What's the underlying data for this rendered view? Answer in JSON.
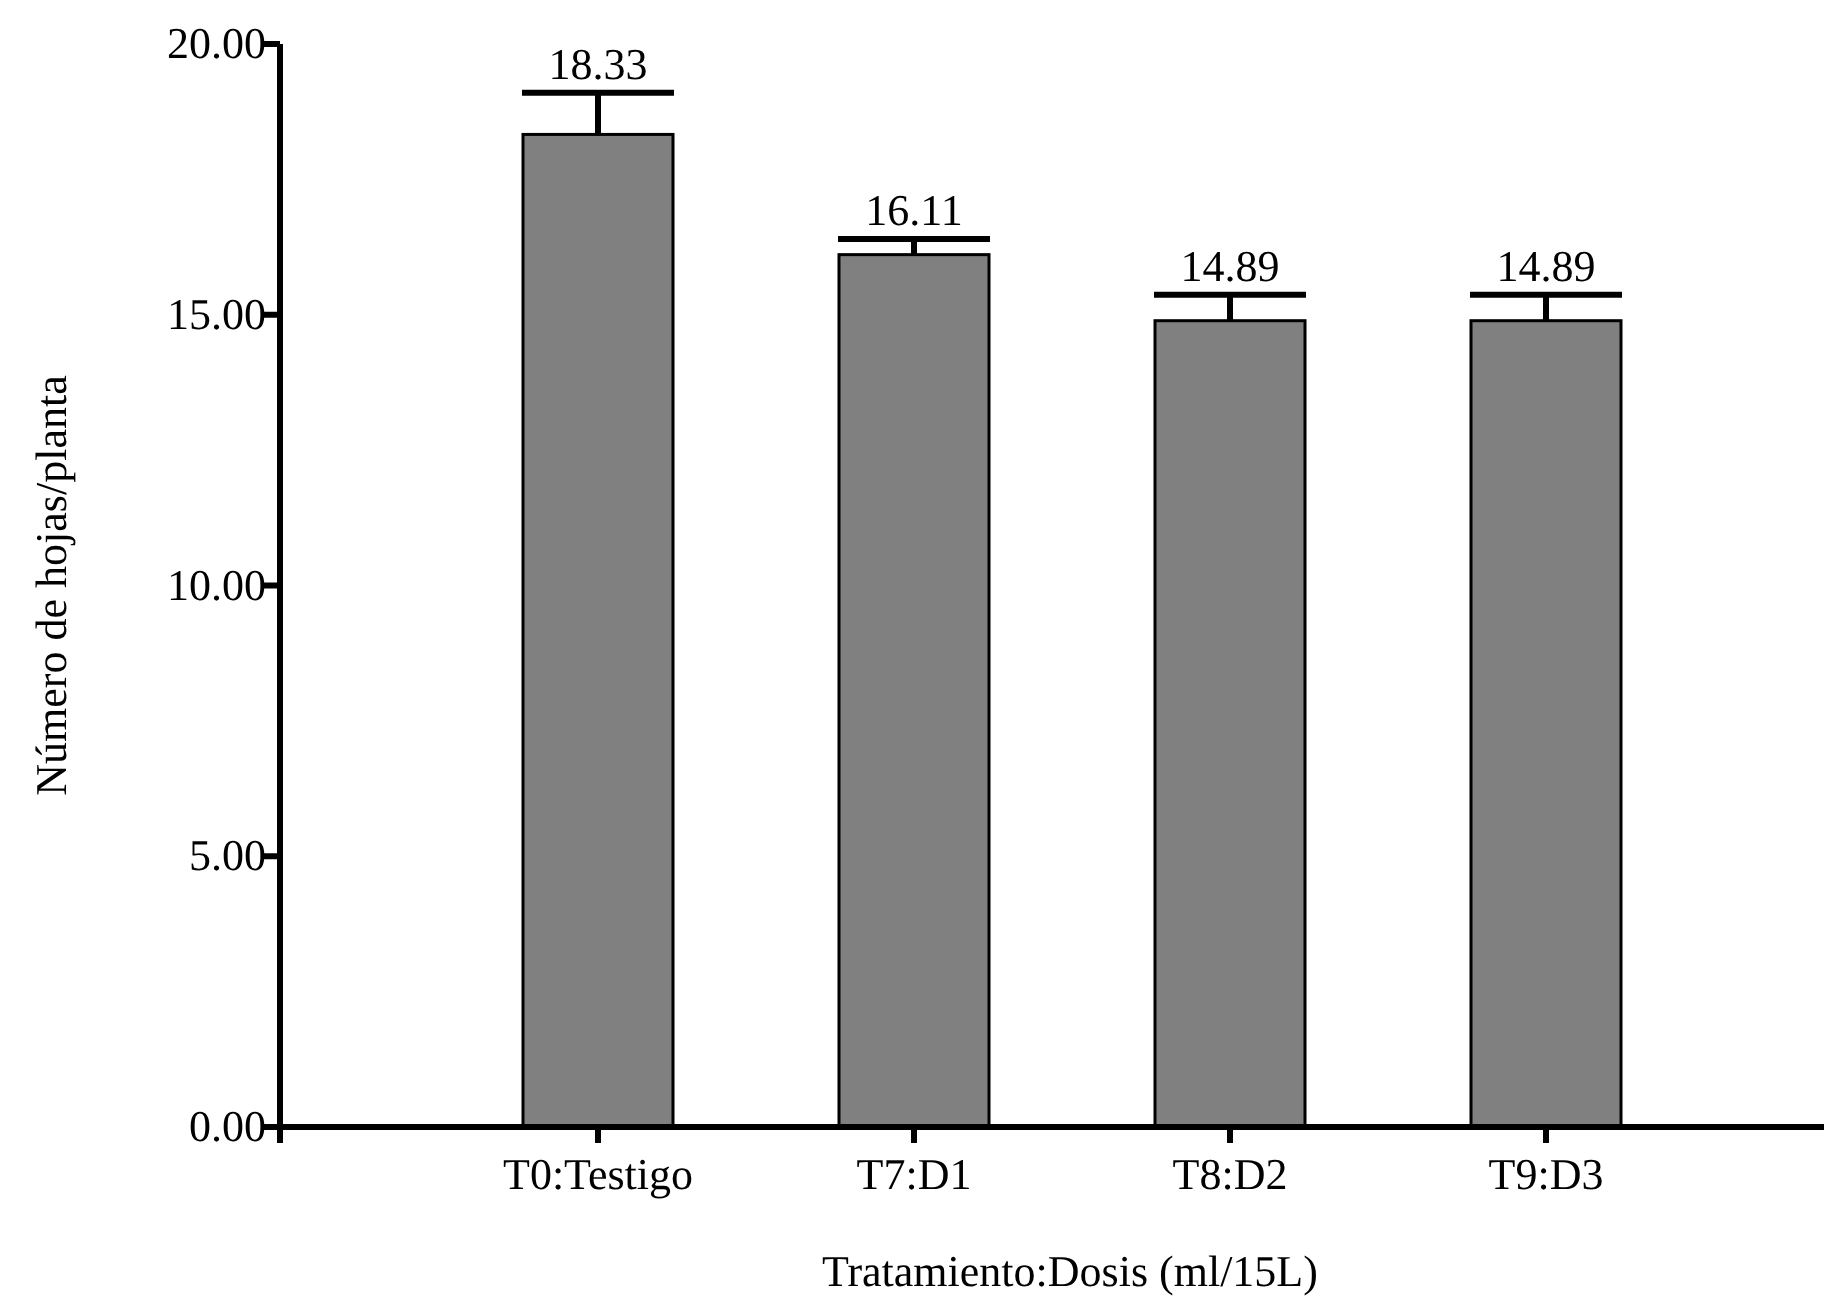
{
  "chart_data": {
    "type": "bar",
    "xlabel": "Tratamiento:Dosis (ml/15L)",
    "ylabel": "Número de hojas/planta",
    "categories": [
      "T0:Testigo",
      "T7:D1",
      "T8:D2",
      "T9:D3"
    ],
    "values": [
      18.33,
      16.11,
      14.89,
      14.89
    ],
    "color": "#808080",
    "errors": [
      [
        18.33,
        19.1
      ],
      [
        16.11,
        16.4
      ],
      [
        14.89,
        15.37
      ],
      [
        14.89,
        15.37
      ]
    ],
    "data_labels": true,
    "ylim": [
      0,
      20
    ],
    "yticks": [
      {
        "value": 0,
        "label": "0.00"
      },
      {
        "value": 5,
        "label": "5.00"
      },
      {
        "value": 10,
        "label": "10.00"
      },
      {
        "value": 15,
        "label": "15.00"
      },
      {
        "value": 20,
        "label": "20.00"
      }
    ],
    "grid": false
  }
}
